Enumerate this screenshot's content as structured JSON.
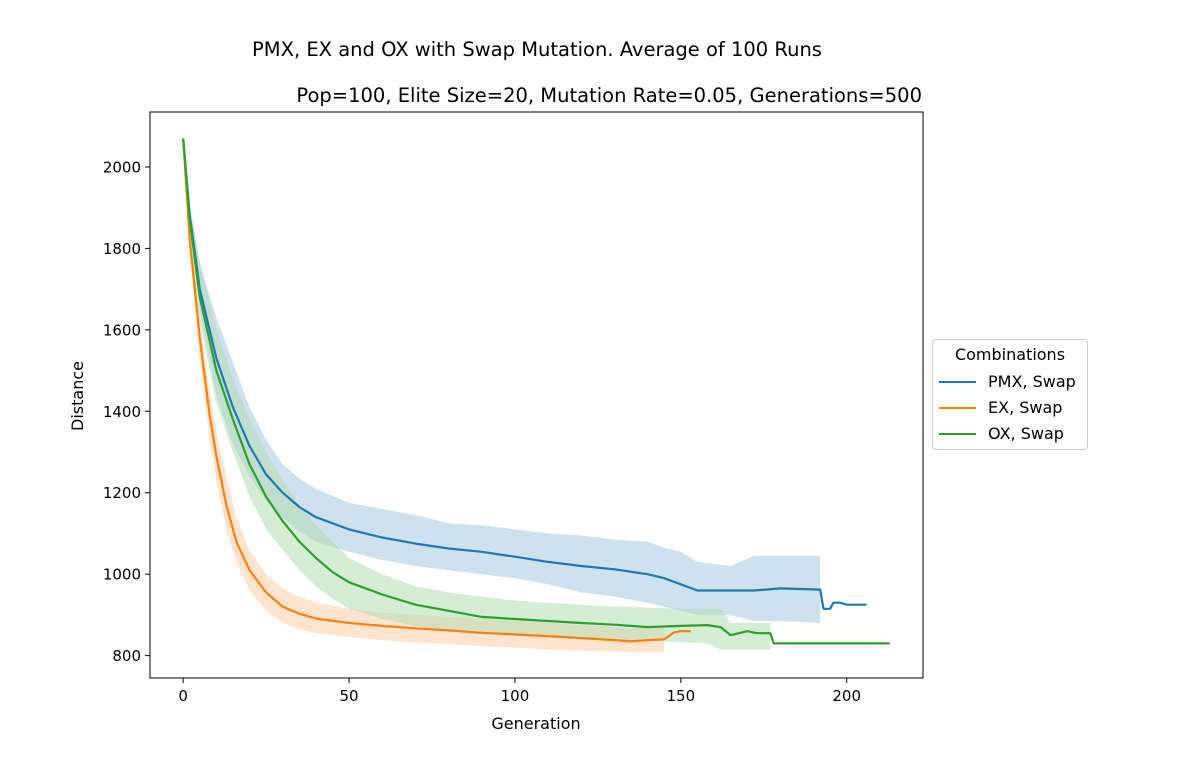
{
  "chart_data": {
    "type": "line",
    "title": "PMX, EX and OX with Swap Mutation. Average of 100 Runs",
    "subtitle": "Pop=100, Elite Size=20, Mutation Rate=0.05, Generations=500",
    "xlabel": "Generation",
    "ylabel": "Distance",
    "xlim": [
      -10,
      223
    ],
    "ylim": [
      745,
      2135
    ],
    "xticks": [
      0,
      50,
      100,
      150,
      200
    ],
    "yticks": [
      800,
      1000,
      1200,
      1400,
      1600,
      1800,
      2000
    ],
    "grid": false,
    "legend": {
      "title": "Combinations",
      "placement": "outside right"
    },
    "series": [
      {
        "name": "PMX, Swap",
        "color": "#1f77b4",
        "band_color": "#a6c8e2",
        "x": [
          0,
          2,
          5,
          10,
          15,
          20,
          25,
          30,
          35,
          40,
          50,
          60,
          70,
          80,
          90,
          100,
          110,
          120,
          130,
          140,
          145,
          150,
          155,
          165,
          172,
          180,
          192,
          193,
          195,
          196,
          198,
          200,
          206
        ],
        "y": [
          2070,
          1880,
          1700,
          1530,
          1410,
          1315,
          1245,
          1200,
          1165,
          1140,
          1110,
          1090,
          1075,
          1063,
          1055,
          1043,
          1030,
          1020,
          1012,
          1000,
          990,
          975,
          960,
          960,
          960,
          965,
          962,
          915,
          915,
          930,
          930,
          925,
          925
        ],
        "lower": [
          2070,
          1860,
          1650,
          1440,
          1320,
          1240,
          1180,
          1140,
          1105,
          1080,
          1055,
          1035,
          1020,
          1010,
          1000,
          990,
          975,
          955,
          945,
          930,
          920,
          910,
          900,
          900,
          885,
          885,
          880,
          null,
          null,
          null,
          null,
          null,
          null
        ],
        "upper": [
          2070,
          1900,
          1760,
          1630,
          1520,
          1410,
          1330,
          1270,
          1235,
          1210,
          1175,
          1160,
          1145,
          1125,
          1120,
          1110,
          1100,
          1095,
          1085,
          1080,
          1065,
          1055,
          1030,
          1020,
          1045,
          1045,
          1045,
          null,
          null,
          null,
          null,
          null,
          null
        ]
      },
      {
        "name": "EX, Swap",
        "color": "#ff7f0e",
        "band_color": "#ffd0a8",
        "x": [
          0,
          2,
          5,
          8,
          10,
          13,
          16,
          20,
          25,
          30,
          35,
          40,
          50,
          60,
          70,
          80,
          90,
          100,
          110,
          120,
          130,
          135,
          140,
          145,
          148,
          150,
          153
        ],
        "y": [
          2070,
          1820,
          1580,
          1390,
          1290,
          1170,
          1080,
          1010,
          955,
          920,
          903,
          891,
          880,
          873,
          867,
          862,
          856,
          852,
          848,
          843,
          838,
          835,
          838,
          840,
          857,
          860,
          860
        ],
        "lower": [
          2070,
          1790,
          1530,
          1330,
          1230,
          1110,
          1030,
          960,
          910,
          880,
          865,
          855,
          845,
          838,
          832,
          828,
          823,
          820,
          815,
          812,
          810,
          808,
          808,
          808,
          null,
          null,
          null
        ],
        "upper": [
          2070,
          1850,
          1630,
          1450,
          1350,
          1240,
          1140,
          1060,
          1000,
          965,
          945,
          930,
          915,
          905,
          900,
          895,
          890,
          885,
          880,
          875,
          870,
          868,
          868,
          870,
          null,
          null,
          null
        ]
      },
      {
        "name": "OX, Swap",
        "color": "#2ca02c",
        "band_color": "#b3dcb3",
        "x": [
          0,
          2,
          5,
          10,
          15,
          20,
          25,
          30,
          35,
          40,
          45,
          50,
          60,
          70,
          80,
          90,
          100,
          110,
          120,
          130,
          140,
          150,
          158,
          162,
          165,
          170,
          173,
          177,
          178,
          213
        ],
        "y": [
          2070,
          1870,
          1680,
          1500,
          1380,
          1270,
          1190,
          1130,
          1080,
          1040,
          1005,
          980,
          950,
          925,
          910,
          895,
          890,
          885,
          880,
          876,
          870,
          873,
          875,
          870,
          850,
          860,
          855,
          855,
          830,
          830
        ],
        "lower": [
          2070,
          1830,
          1620,
          1420,
          1300,
          1190,
          1110,
          1060,
          1010,
          970,
          940,
          915,
          890,
          872,
          860,
          852,
          848,
          845,
          842,
          838,
          836,
          833,
          830,
          815,
          815,
          815,
          815,
          815,
          null,
          null
        ],
        "upper": [
          2070,
          1910,
          1770,
          1600,
          1480,
          1380,
          1300,
          1230,
          1170,
          1120,
          1080,
          1040,
          1000,
          970,
          955,
          945,
          935,
          930,
          925,
          920,
          918,
          915,
          915,
          915,
          880,
          880,
          880,
          880,
          null,
          null
        ]
      }
    ]
  }
}
